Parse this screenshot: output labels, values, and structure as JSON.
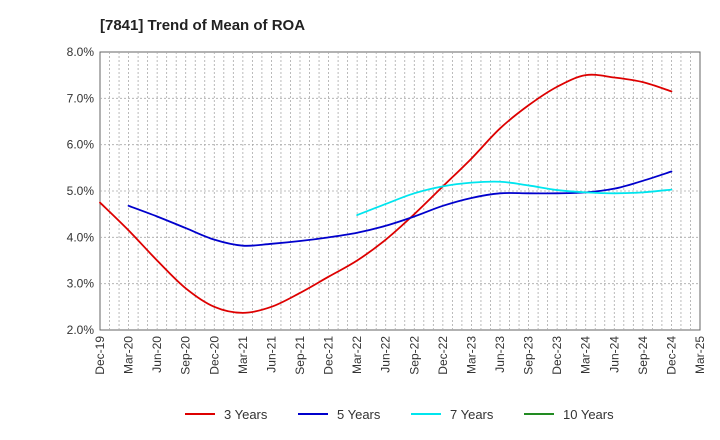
{
  "chart_data": {
    "type": "line",
    "title": "[7841]  Trend of Mean of ROA",
    "xlabel": "",
    "ylabel": "",
    "x": [
      "Dec-19",
      "Mar-20",
      "Jun-20",
      "Sep-20",
      "Dec-20",
      "Mar-21",
      "Jun-21",
      "Sep-21",
      "Dec-21",
      "Mar-22",
      "Jun-22",
      "Sep-22",
      "Dec-22",
      "Mar-23",
      "Jun-23",
      "Sep-23",
      "Dec-23",
      "Mar-24",
      "Jun-24",
      "Sep-24",
      "Dec-24",
      "Mar-25"
    ],
    "ylim": [
      2.0,
      8.0
    ],
    "yticks": [
      "2.0%",
      "3.0%",
      "4.0%",
      "5.0%",
      "6.0%",
      "7.0%",
      "8.0%"
    ],
    "grid": true,
    "legend_position": "bottom",
    "series": [
      {
        "name": "3 Years",
        "color": "#dd0000",
        "values": [
          4.75,
          4.15,
          3.5,
          2.9,
          2.5,
          2.37,
          2.5,
          2.8,
          3.15,
          3.5,
          3.95,
          4.5,
          5.1,
          5.7,
          6.35,
          6.85,
          7.25,
          7.5,
          7.45,
          7.35,
          7.15,
          null
        ]
      },
      {
        "name": "5 Years",
        "color": "#0000cc",
        "values": [
          null,
          4.68,
          4.45,
          4.2,
          3.95,
          3.82,
          3.86,
          3.92,
          4.0,
          4.1,
          4.25,
          4.45,
          4.68,
          4.85,
          4.95,
          4.95,
          4.95,
          4.97,
          5.05,
          5.22,
          5.42,
          null
        ]
      },
      {
        "name": "7 Years",
        "color": "#00e5ee",
        "values": [
          null,
          null,
          null,
          null,
          null,
          null,
          null,
          null,
          null,
          4.48,
          4.72,
          4.95,
          5.1,
          5.18,
          5.2,
          5.12,
          5.02,
          4.97,
          4.95,
          4.97,
          5.03,
          null
        ]
      },
      {
        "name": "10 Years",
        "color": "#228b22",
        "values": [
          null,
          null,
          null,
          null,
          null,
          null,
          null,
          null,
          null,
          null,
          null,
          null,
          null,
          null,
          null,
          null,
          null,
          null,
          null,
          null,
          null,
          null
        ]
      }
    ]
  }
}
